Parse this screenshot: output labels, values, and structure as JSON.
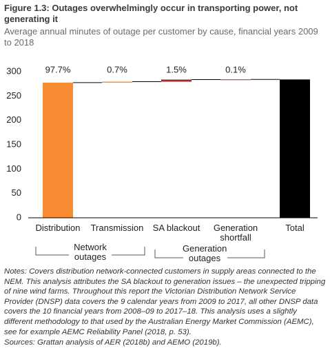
{
  "chart_data": {
    "type": "waterfall",
    "title": "Figure 1.3: Outages overwhelmingly occur in transporting power, not generating it",
    "subtitle": "Average annual minutes of outage per customer by cause, financial years 2009 to 2018",
    "categories": [
      "Distribution",
      "Transmission",
      "SA blackout",
      "Generation shortfall",
      "Total"
    ],
    "values": [
      277.5,
      2,
      4.3,
      0.3,
      284
    ],
    "colors": [
      "#f68b33",
      "#f68b33",
      "#a32a2a",
      "#a32a2a",
      "#000000"
    ],
    "share_labels": [
      "97.7%",
      "0.7%",
      "1.5%",
      "0.1%"
    ],
    "groups": [
      {
        "label": "Network outages"
      },
      {
        "label": "Generation outages"
      }
    ],
    "ylim": [
      0,
      300
    ],
    "yticks": [
      0,
      50,
      100,
      150,
      200,
      250,
      300
    ],
    "grid": false,
    "notes": "Notes: Covers distribution network-connected customers in supply areas connected to the NEM. This analysis attributes the SA blackout to generation issues – the unexpected tripping of nine wind farms. Throughout this report the Victorian Distribution Network Service Provider (DNSP) data covers the 9 calendar years from 2009 to 2017, all other DNSP data covers the 10 financial years from 2008–09 to 2017–18. This analysis uses a slightly different methodology to that used by the Australian Energy Market Commission (AEMC), see for example AEMC Reliability Panel (2018, p. 53).",
    "sources": "Sources: Grattan analysis of AER (2018b) and AEMO (2019b)."
  }
}
